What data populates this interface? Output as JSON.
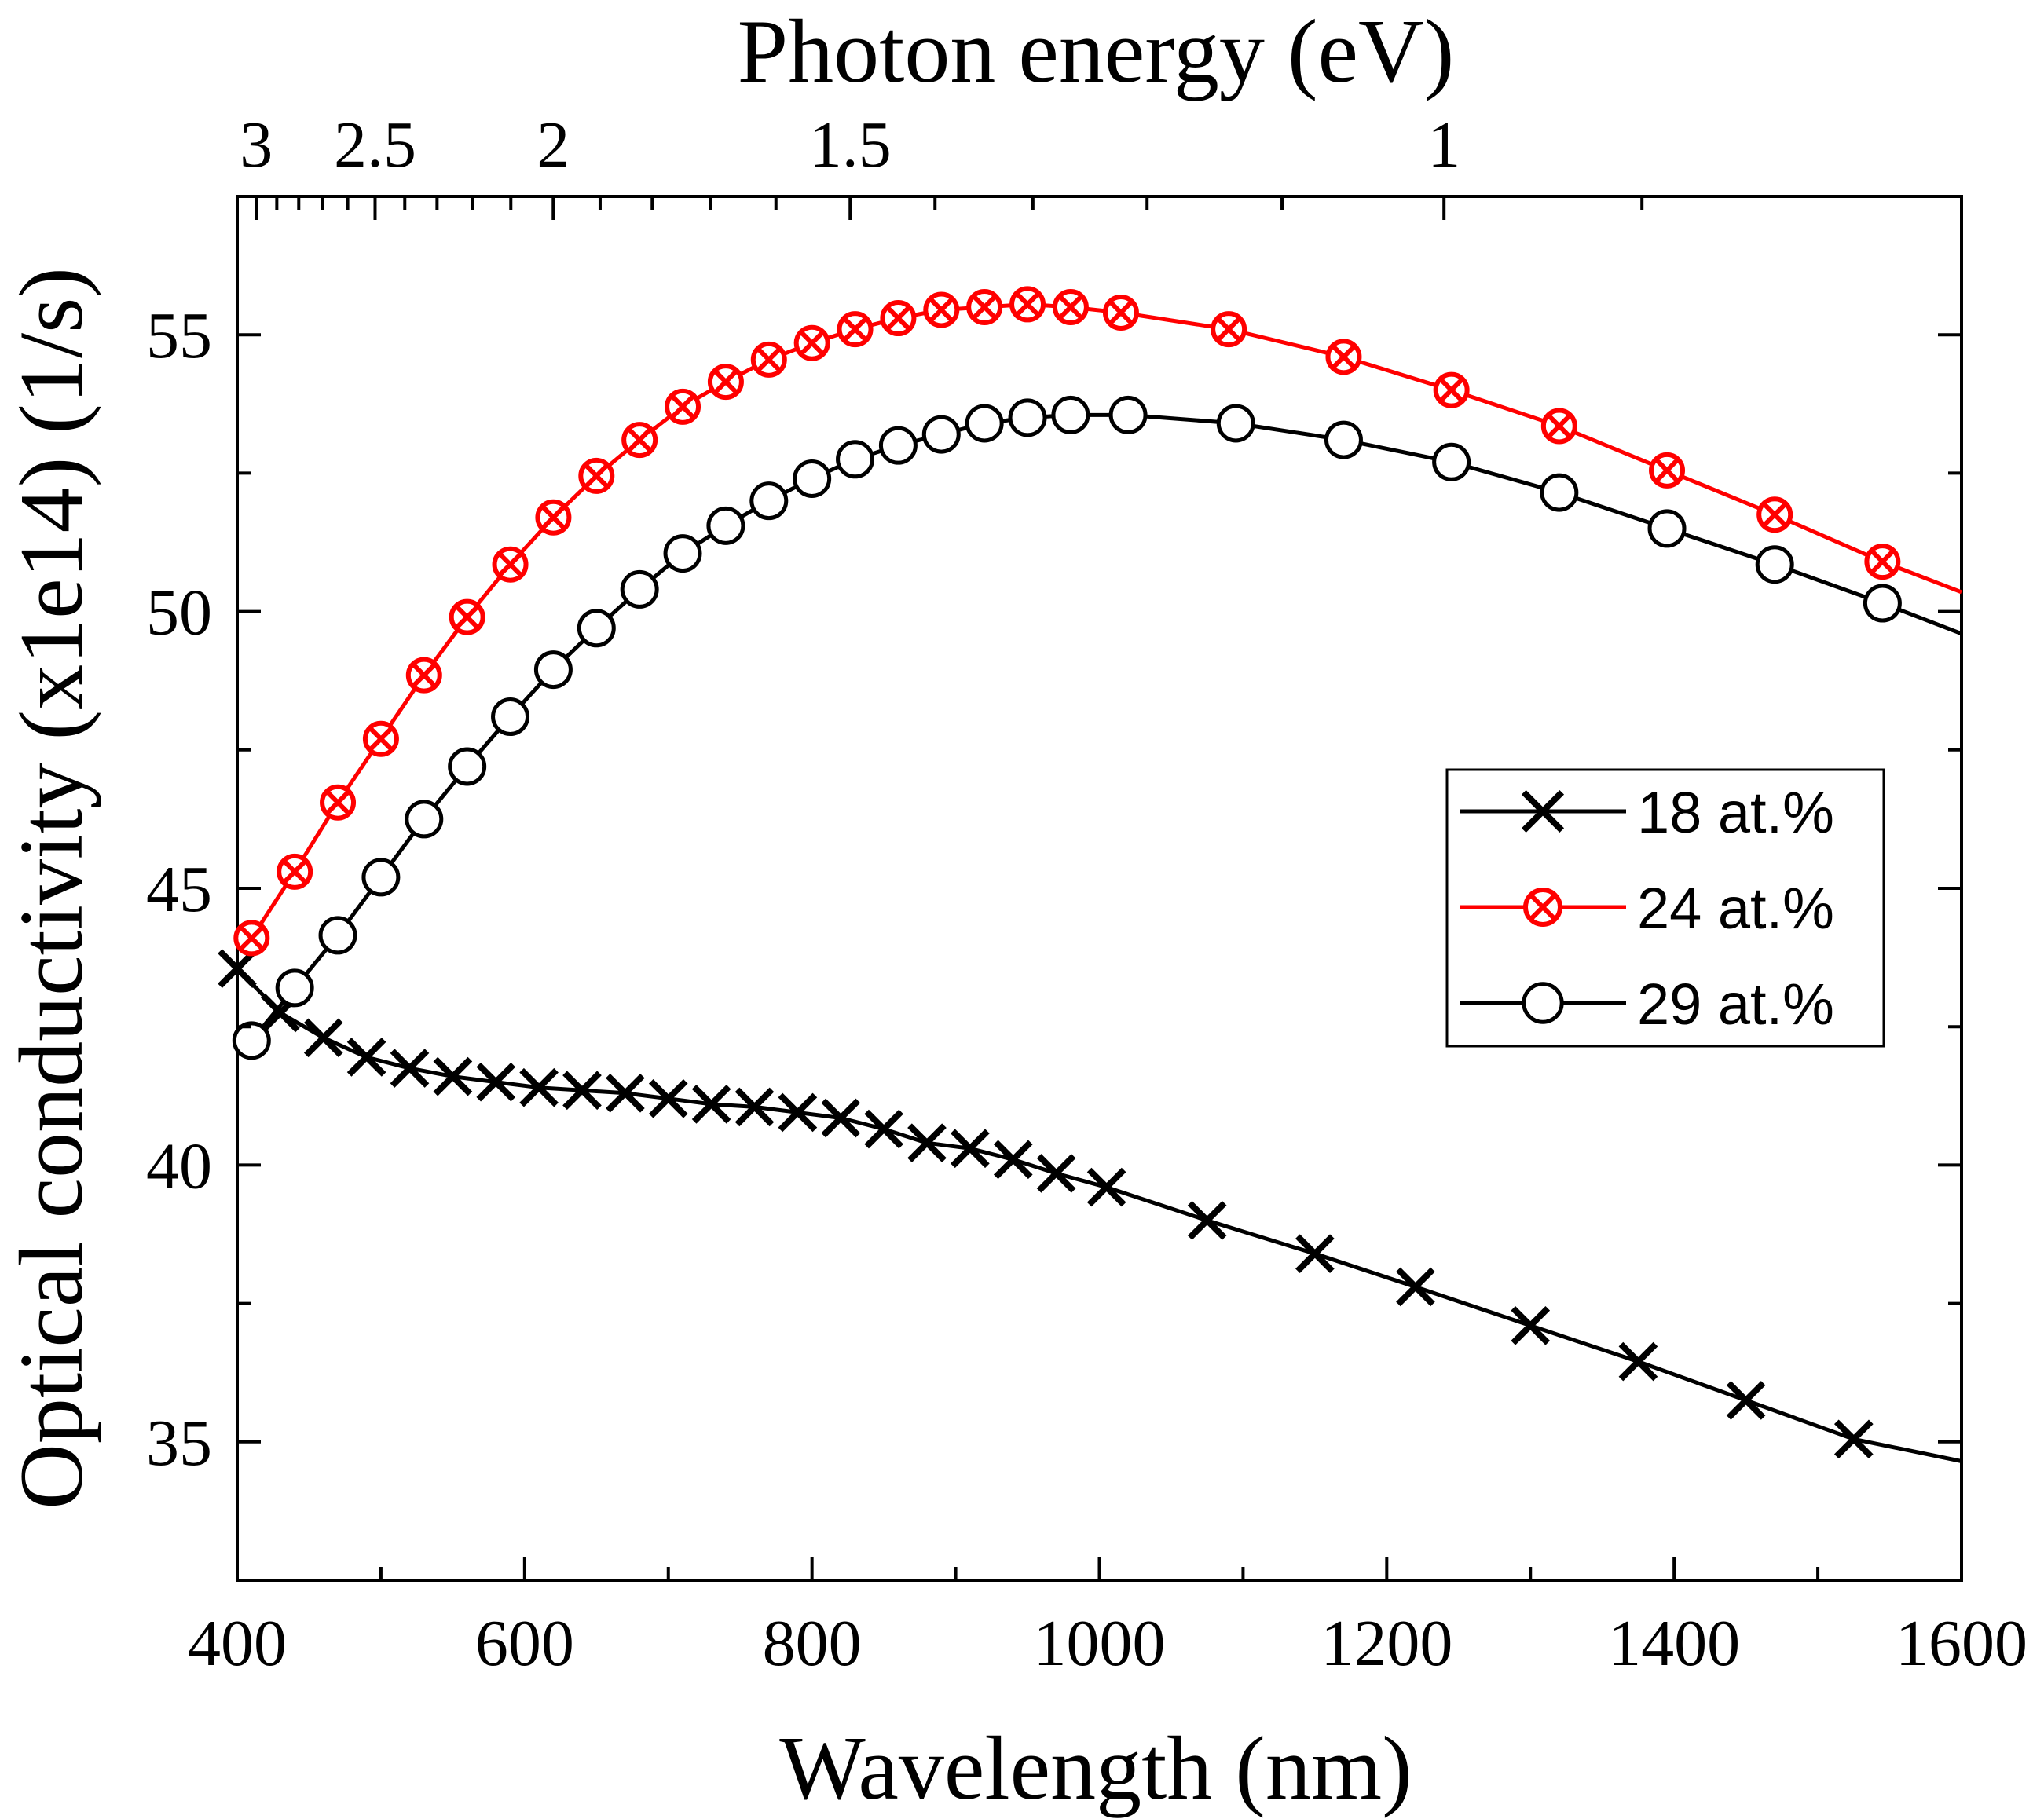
{
  "chart_data": {
    "type": "line",
    "xlabel": "Wavelength (nm)",
    "ylabel": "Optical conductivity (x1e14) (1/s)",
    "top_xlabel": "Photon energy (eV)",
    "xlim": [
      400,
      1600
    ],
    "ylim": [
      32.5,
      57.5
    ],
    "x_ticks": [
      400,
      600,
      800,
      1000,
      1200,
      1400,
      1600
    ],
    "x_tick_labels": [
      "400",
      "600",
      "800",
      "1000",
      "1200",
      "1400",
      "1600"
    ],
    "y_ticks": [
      35,
      40,
      45,
      50,
      55
    ],
    "y_tick_labels": [
      "35",
      "40",
      "45",
      "50",
      "55"
    ],
    "top_ticks_ev": [
      3,
      2.5,
      2,
      1.5,
      1
    ],
    "top_tick_labels": [
      "3",
      "2.5",
      "2",
      "1.5",
      "1"
    ],
    "grid": false,
    "legend_position": "center-right",
    "series": [
      {
        "name": "18 at.%",
        "color": "#000000",
        "marker": "x",
        "x": [
          400,
          430,
          460,
          490,
          520,
          550,
          580,
          610,
          640,
          670,
          700,
          730,
          760,
          790,
          820,
          850,
          880,
          910,
          940,
          970,
          1005,
          1075,
          1150,
          1220,
          1300,
          1375,
          1450,
          1525,
          1600
        ],
        "y": [
          43.55,
          42.75,
          42.3,
          41.95,
          41.75,
          41.6,
          41.5,
          41.4,
          41.35,
          41.3,
          41.2,
          41.1,
          41.05,
          40.95,
          40.85,
          40.65,
          40.4,
          40.3,
          40.1,
          39.85,
          39.6,
          39.0,
          38.4,
          37.8,
          37.1,
          36.45,
          35.75,
          35.05,
          34.65
        ]
      },
      {
        "name": "24 at.%",
        "color": "#ff0000",
        "marker": "circle-x",
        "x": [
          410,
          440,
          470,
          500,
          530,
          560,
          590,
          620,
          650,
          680,
          710,
          740,
          770,
          800,
          830,
          860,
          890,
          920,
          950,
          980,
          1015,
          1090,
          1170,
          1245,
          1320,
          1395,
          1470,
          1545,
          1600
        ],
        "y": [
          44.1,
          45.3,
          46.55,
          47.7,
          48.85,
          49.9,
          50.85,
          51.7,
          52.45,
          53.1,
          53.7,
          54.15,
          54.55,
          54.85,
          55.1,
          55.3,
          55.45,
          55.5,
          55.55,
          55.5,
          55.4,
          55.1,
          54.6,
          54.0,
          53.35,
          52.55,
          51.75,
          50.9,
          50.35
        ]
      },
      {
        "name": "29 at.%",
        "color": "#000000",
        "marker": "circle",
        "x": [
          410,
          440,
          470,
          500,
          530,
          560,
          590,
          620,
          650,
          680,
          710,
          740,
          770,
          800,
          830,
          860,
          890,
          920,
          950,
          980,
          1020,
          1095,
          1170,
          1245,
          1320,
          1395,
          1470,
          1545,
          1600
        ],
        "y": [
          42.25,
          43.2,
          44.15,
          45.2,
          46.25,
          47.2,
          48.1,
          48.95,
          49.7,
          50.4,
          51.05,
          51.55,
          52.0,
          52.4,
          52.75,
          53.0,
          53.2,
          53.4,
          53.5,
          53.55,
          53.55,
          53.4,
          53.1,
          52.7,
          52.15,
          51.5,
          50.85,
          50.15,
          49.6
        ]
      }
    ]
  }
}
